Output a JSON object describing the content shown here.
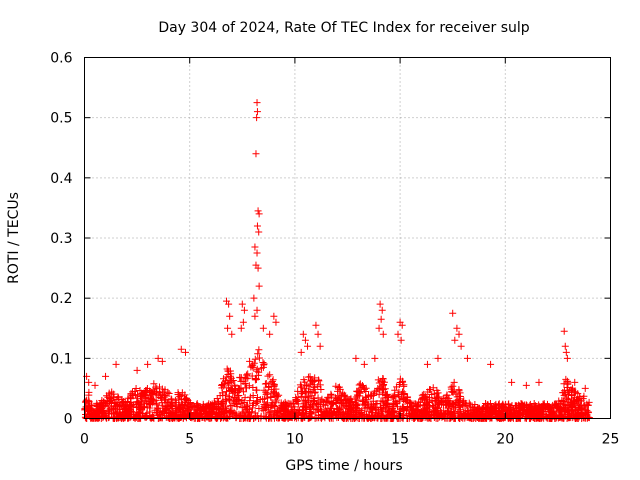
{
  "chart_data": {
    "type": "scatter",
    "title": "Day 304 of 2024, Rate Of TEC Index for receiver sulp",
    "xlabel": "GPS time / hours",
    "ylabel": "ROTI / TECUs",
    "xlim": [
      0,
      25
    ],
    "ylim": [
      0,
      0.6
    ],
    "x_ticks": [
      0,
      5,
      10,
      15,
      20,
      25
    ],
    "x_tick_labels": [
      "0",
      "5",
      "10",
      "15",
      "20",
      "25"
    ],
    "y_ticks": [
      0,
      0.1,
      0.2,
      0.3,
      0.4,
      0.5,
      0.6
    ],
    "y_tick_labels": [
      "0",
      "0.1",
      "0.2",
      "0.3",
      "0.4",
      "0.5",
      "0.6"
    ],
    "grid": true,
    "marker": "+",
    "color": "#ff0000",
    "series": [
      {
        "name": "ROTI",
        "points": [
          [
            8.2,
            0.525
          ],
          [
            8.22,
            0.51
          ],
          [
            8.18,
            0.5
          ],
          [
            8.15,
            0.44
          ],
          [
            8.25,
            0.345
          ],
          [
            8.3,
            0.34
          ],
          [
            8.22,
            0.32
          ],
          [
            8.28,
            0.31
          ],
          [
            8.1,
            0.285
          ],
          [
            8.2,
            0.275
          ],
          [
            8.15,
            0.255
          ],
          [
            8.25,
            0.25
          ],
          [
            8.05,
            0.2
          ],
          [
            8.3,
            0.22
          ],
          [
            8.2,
            0.18
          ],
          [
            8.1,
            0.17
          ],
          [
            6.75,
            0.195
          ],
          [
            6.85,
            0.19
          ],
          [
            6.9,
            0.17
          ],
          [
            6.8,
            0.15
          ],
          [
            7.0,
            0.14
          ],
          [
            7.5,
            0.19
          ],
          [
            7.6,
            0.18
          ],
          [
            7.55,
            0.16
          ],
          [
            7.45,
            0.15
          ],
          [
            8.5,
            0.15
          ],
          [
            9.0,
            0.17
          ],
          [
            9.1,
            0.16
          ],
          [
            8.8,
            0.14
          ],
          [
            14.05,
            0.19
          ],
          [
            14.15,
            0.18
          ],
          [
            14.1,
            0.165
          ],
          [
            14.0,
            0.15
          ],
          [
            14.2,
            0.14
          ],
          [
            15.0,
            0.16
          ],
          [
            15.1,
            0.155
          ],
          [
            14.9,
            0.14
          ],
          [
            15.05,
            0.13
          ],
          [
            17.5,
            0.175
          ],
          [
            17.7,
            0.15
          ],
          [
            17.8,
            0.14
          ],
          [
            17.6,
            0.13
          ],
          [
            17.9,
            0.12
          ],
          [
            22.8,
            0.145
          ],
          [
            22.85,
            0.12
          ],
          [
            22.9,
            0.11
          ],
          [
            22.95,
            0.1
          ],
          [
            10.4,
            0.14
          ],
          [
            10.5,
            0.13
          ],
          [
            10.6,
            0.12
          ],
          [
            10.3,
            0.11
          ],
          [
            11.0,
            0.155
          ],
          [
            11.1,
            0.14
          ],
          [
            11.2,
            0.12
          ],
          [
            3.5,
            0.1
          ],
          [
            3.7,
            0.095
          ],
          [
            4.6,
            0.115
          ],
          [
            4.8,
            0.11
          ],
          [
            3.0,
            0.09
          ],
          [
            2.5,
            0.08
          ],
          [
            1.5,
            0.09
          ],
          [
            1.0,
            0.07
          ],
          [
            0.1,
            0.07
          ],
          [
            0.2,
            0.06
          ],
          [
            0.5,
            0.055
          ],
          [
            12.9,
            0.1
          ],
          [
            13.3,
            0.09
          ],
          [
            13.8,
            0.1
          ],
          [
            16.3,
            0.09
          ],
          [
            16.8,
            0.1
          ],
          [
            18.2,
            0.1
          ],
          [
            19.3,
            0.09
          ],
          [
            20.3,
            0.06
          ],
          [
            21.0,
            0.055
          ],
          [
            21.6,
            0.06
          ],
          [
            23.3,
            0.06
          ],
          [
            23.8,
            0.05
          ]
        ]
      }
    ]
  }
}
